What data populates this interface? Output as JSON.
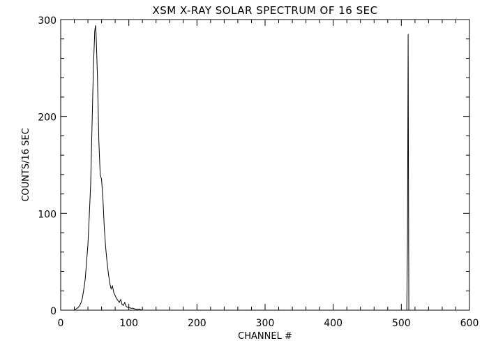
{
  "chart_data": {
    "type": "line",
    "title": "XSM X-RAY SOLAR SPECTRUM OF 16 SEC",
    "xlabel": "CHANNEL #",
    "ylabel": "COUNTS/16 SEC",
    "xlim": [
      0,
      600
    ],
    "ylim": [
      0,
      300
    ],
    "x_ticks": [
      "0",
      "100",
      "200",
      "300",
      "400",
      "500",
      "600"
    ],
    "y_ticks": [
      "0",
      "100",
      "200",
      "300"
    ],
    "grid": false,
    "line_color": "#000000",
    "series": [
      {
        "x": [
          20,
          22,
          24,
          26,
          28,
          30,
          32,
          34,
          36,
          38,
          40,
          42,
          44,
          46,
          48,
          50,
          51,
          52,
          54,
          56,
          58,
          60,
          62,
          64,
          66,
          68,
          70,
          72,
          74,
          76,
          78,
          80,
          82,
          84,
          86,
          88,
          90,
          92,
          94,
          96,
          98,
          100,
          103,
          106,
          110,
          115,
          120,
          130,
          140,
          150,
          200,
          300,
          400,
          500,
          508,
          509,
          510,
          511,
          512,
          520,
          600
        ],
        "y": [
          0,
          1,
          2,
          3,
          5,
          8,
          13,
          22,
          32,
          50,
          68,
          98,
          130,
          190,
          250,
          288,
          294,
          285,
          240,
          175,
          140,
          135,
          115,
          85,
          65,
          50,
          38,
          28,
          22,
          25,
          18,
          15,
          12,
          10,
          8,
          11,
          6,
          5,
          8,
          4,
          3,
          3,
          2,
          2,
          1,
          1,
          0,
          0,
          0,
          0,
          0,
          0,
          0,
          0,
          0,
          70,
          285,
          0,
          0,
          0,
          0
        ]
      }
    ]
  }
}
